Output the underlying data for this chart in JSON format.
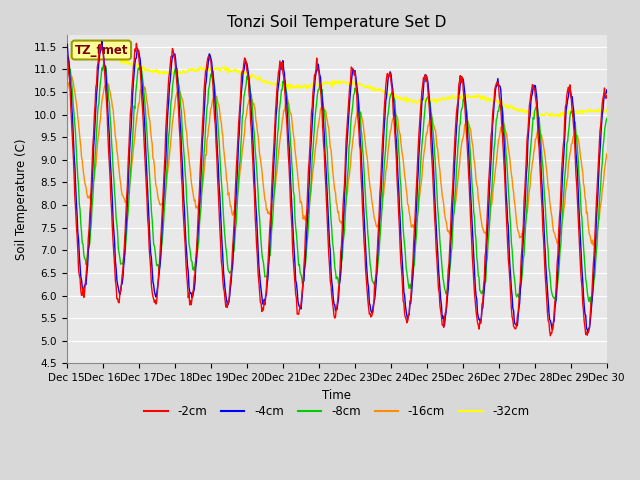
{
  "title": "Tonzi Soil Temperature Set D",
  "xlabel": "Time",
  "ylabel": "Soil Temperature (C)",
  "ylim": [
    4.5,
    11.75
  ],
  "yticks": [
    4.5,
    5.0,
    5.5,
    6.0,
    6.5,
    7.0,
    7.5,
    8.0,
    8.5,
    9.0,
    9.5,
    10.0,
    10.5,
    11.0,
    11.5
  ],
  "colors": {
    "-2cm": "#ff0000",
    "-4cm": "#0000ff",
    "-8cm": "#00cc00",
    "-16cm": "#ff8c00",
    "-32cm": "#ffff00"
  },
  "legend_labels": [
    "-2cm",
    "-4cm",
    "-8cm",
    "-16cm",
    "-32cm"
  ],
  "annotation_text": "TZ_fmet",
  "annotation_bg": "#ffff99",
  "annotation_border": "#999900",
  "fig_bg": "#d8d8d8",
  "ax_bg": "#e8e8e8",
  "n_points": 720,
  "x_ticks": [
    0,
    1,
    2,
    3,
    4,
    5,
    6,
    7,
    8,
    9,
    10,
    11,
    12,
    13,
    14,
    15
  ],
  "x_tick_labels": [
    "Dec 15",
    "Dec 16",
    "Dec 17",
    "Dec 18",
    "Dec 19",
    "Dec 20",
    "Dec 21",
    "Dec 22",
    "Dec 23",
    "Dec 24",
    "Dec 25",
    "Dec 26",
    "Dec 27",
    "Dec 28",
    "Dec 29",
    "Dec 30"
  ]
}
